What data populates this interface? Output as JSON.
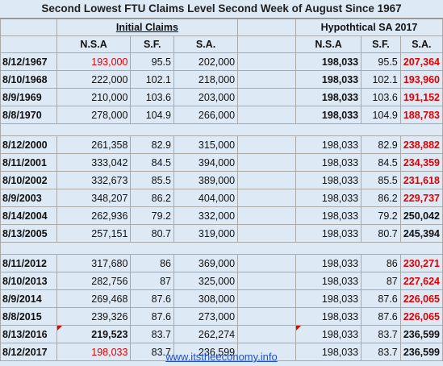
{
  "title": "Second Lowest FTU Claims Level Second Week of August Since 1967",
  "group_left": "Initial Claims",
  "group_right": "Hypothtical SA 2017",
  "col_headers": [
    "N.S.A",
    "S.F.",
    "S.A.",
    "N.S.A",
    "S.F.",
    "S.A."
  ],
  "groups": [
    [
      {
        "date": "8/12/1967",
        "nsa": "193,000",
        "sf": "95.5",
        "sa": "202,000",
        "hnsa": "198,033",
        "hsf": "95.5",
        "hsa": "207,364"
      },
      {
        "date": "8/10/1968",
        "nsa": "222,000",
        "sf": "102.1",
        "sa": "218,000",
        "hnsa": "198,033",
        "hsf": "102.1",
        "hsa": "193,960"
      },
      {
        "date": "8/9/1969",
        "nsa": "210,000",
        "sf": "103.6",
        "sa": "203,000",
        "hnsa": "198,033",
        "hsf": "103.6",
        "hsa": "191,152"
      },
      {
        "date": "8/8/1970",
        "nsa": "278,000",
        "sf": "104.9",
        "sa": "266,000",
        "hnsa": "198,033",
        "hsf": "104.9",
        "hsa": "188,783"
      }
    ],
    [
      {
        "date": "8/12/2000",
        "nsa": "261,358",
        "sf": "82.9",
        "sa": "315,000",
        "hnsa": "198,033",
        "hsf": "82.9",
        "hsa": "238,882"
      },
      {
        "date": "8/11/2001",
        "nsa": "333,042",
        "sf": "84.5",
        "sa": "394,000",
        "hnsa": "198,033",
        "hsf": "84.5",
        "hsa": "234,359"
      },
      {
        "date": "8/10/2002",
        "nsa": "332,673",
        "sf": "85.5",
        "sa": "389,000",
        "hnsa": "198,033",
        "hsf": "85.5",
        "hsa": "231,618"
      },
      {
        "date": "8/9/2003",
        "nsa": "348,207",
        "sf": "86.2",
        "sa": "404,000",
        "hnsa": "198,033",
        "hsf": "86.2",
        "hsa": "229,737"
      },
      {
        "date": "8/14/2004",
        "nsa": "262,936",
        "sf": "79.2",
        "sa": "332,000",
        "hnsa": "198,033",
        "hsf": "79.2",
        "hsa": "250,042"
      },
      {
        "date": "8/13/2005",
        "nsa": "257,151",
        "sf": "80.7",
        "sa": "319,000",
        "hnsa": "198,033",
        "hsf": "80.7",
        "hsa": "245,394"
      }
    ],
    [
      {
        "date": "8/11/2012",
        "nsa": "317,680",
        "sf": "86",
        "sa": "369,000",
        "hnsa": "198,033",
        "hsf": "86",
        "hsa": "230,271"
      },
      {
        "date": "8/10/2013",
        "nsa": "282,756",
        "sf": "87",
        "sa": "325,000",
        "hnsa": "198,033",
        "hsf": "87",
        "hsa": "227,624"
      },
      {
        "date": "8/9/2014",
        "nsa": "269,468",
        "sf": "87.6",
        "sa": "308,000",
        "hnsa": "198,033",
        "hsf": "87.6",
        "hsa": "226,065"
      },
      {
        "date": "8/8/2015",
        "nsa": "239,326",
        "sf": "87.6",
        "sa": "273,000",
        "hnsa": "198,033",
        "hsf": "87.6",
        "hsa": "226,065"
      },
      {
        "date": "8/13/2016",
        "nsa": "219,523",
        "sf": "83.7",
        "sa": "262,274",
        "hnsa": "198,033",
        "hsf": "83.7",
        "hsa": "236,599"
      },
      {
        "date": "8/12/2017",
        "nsa": "198,033",
        "sf": "83.7",
        "sa": "236,599",
        "hnsa": "198,033",
        "hsf": "83.7",
        "hsa": "236,599"
      }
    ]
  ],
  "styles": {
    "red_nsa": [
      "8/12/1967",
      "8/12/2017"
    ],
    "bold_nsa": [
      "8/13/2016"
    ],
    "bold_hnsa": [
      "8/12/1967",
      "8/10/1968",
      "8/9/1969",
      "8/8/1970"
    ],
    "black_hsa": [
      "8/14/2004",
      "8/13/2005",
      "8/13/2016",
      "8/12/2017"
    ],
    "mark_nsa": [
      "8/13/2016"
    ],
    "mark_hnsa": [
      "8/13/2016"
    ]
  },
  "colors": {
    "red": "#e00000",
    "background": "#dde9f5",
    "link": "#1f4fc7"
  },
  "footer": "www.itstheeconomy.info"
}
